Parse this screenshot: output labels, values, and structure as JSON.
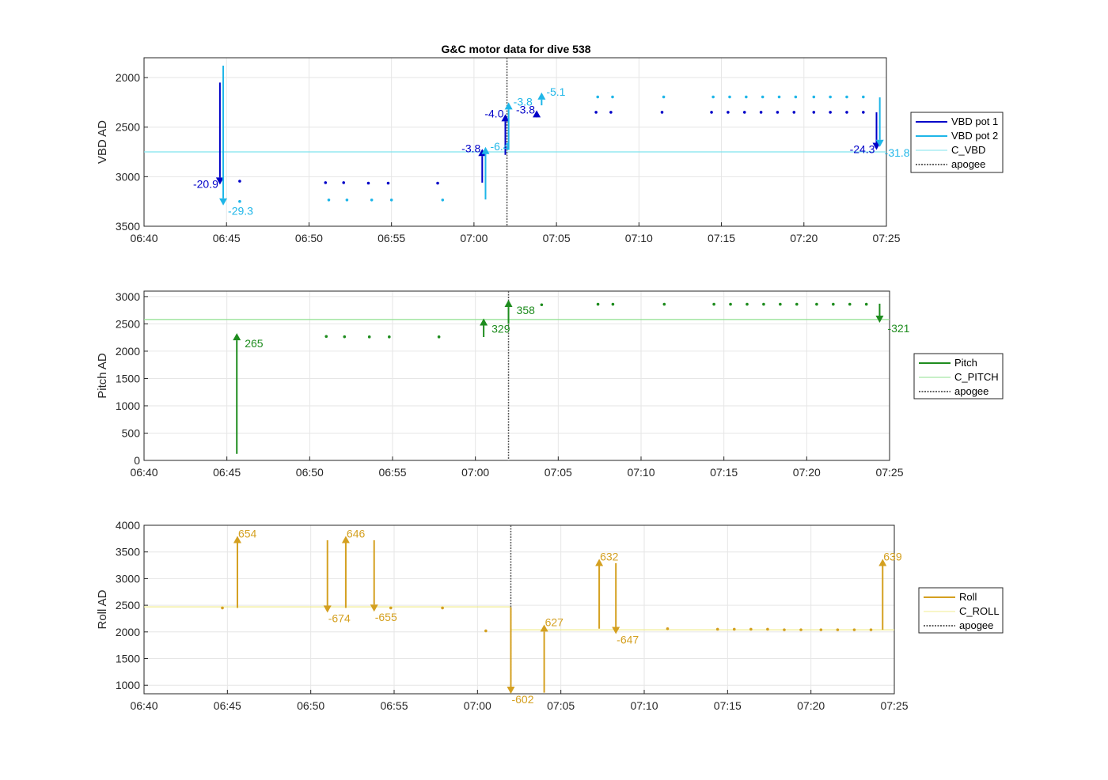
{
  "figure": {
    "title": "G&C motor data for dive 538"
  },
  "colors": {
    "vbd_pot1": "#0000c8",
    "vbd_pot2": "#1fb6e8",
    "c_vbd": "#7fe3ee",
    "pitch": "#1e8c1e",
    "c_pitch": "#8fe08f",
    "roll": "#d4a020",
    "c_roll": "#f0ec90",
    "apogee": "#555555",
    "grid": "#e6e6e6",
    "axis": "#262626"
  },
  "chart_data": [
    {
      "type": "scatter",
      "ylabel": "VBD AD",
      "y_reversed": true,
      "xlim": [
        "06:40",
        "07:25"
      ],
      "ylim": [
        1800,
        3500
      ],
      "xticks": [
        "06:40",
        "06:45",
        "06:50",
        "06:55",
        "07:00",
        "07:05",
        "07:10",
        "07:15",
        "07:20",
        "07:25"
      ],
      "yticks": [
        2000,
        2500,
        3000,
        3500
      ],
      "legend": [
        "VBD pot 1",
        "VBD pot 2",
        "C_VBD",
        "apogee"
      ],
      "legend_location": "outside-right",
      "grid": true,
      "apogee": "07:02",
      "reference_line": {
        "name": "C_VBD",
        "y": 2750
      },
      "series": [
        {
          "name": "VBD pot 1",
          "points": [
            [
              "06:45.8",
              3045
            ],
            [
              "06:51.0",
              3060
            ],
            [
              "06:52.1",
              3060
            ],
            [
              "06:53.6",
              3065
            ],
            [
              "06:54.8",
              3065
            ],
            [
              "06:57.8",
              3065
            ],
            [
              "07:07.4",
              2350
            ],
            [
              "07:08.3",
              2350
            ],
            [
              "07:11.4",
              2350
            ],
            [
              "07:14.4",
              2350
            ],
            [
              "07:15.4",
              2350
            ],
            [
              "07:16.4",
              2350
            ],
            [
              "07:17.4",
              2350
            ],
            [
              "07:18.4",
              2350
            ],
            [
              "07:19.4",
              2350
            ],
            [
              "07:20.6",
              2350
            ],
            [
              "07:21.6",
              2350
            ],
            [
              "07:22.6",
              2350
            ],
            [
              "07:23.6",
              2350
            ]
          ],
          "arrows": [
            {
              "x": "06:44.6",
              "y_from": 2050,
              "y_to": 3080,
              "label": "-20.9"
            },
            {
              "x": "07:00.5",
              "y_from": 3060,
              "y_to": 2720,
              "label": "-3.8"
            },
            {
              "x": "07:01.9",
              "y_from": 2780,
              "y_to": 2370,
              "label": "-4.0"
            },
            {
              "x": "07:03.8",
              "y_from": 2400,
              "y_to": 2330,
              "label": "-3.8"
            },
            {
              "x": "07:24.4",
              "y_from": 2350,
              "y_to": 2730,
              "label": "-24.3"
            }
          ]
        },
        {
          "name": "VBD pot 2",
          "points": [
            [
              "06:45.8",
              3250
            ],
            [
              "06:51.2",
              3235
            ],
            [
              "06:52.3",
              3235
            ],
            [
              "06:53.8",
              3235
            ],
            [
              "06:55.0",
              3235
            ],
            [
              "06:58.1",
              3235
            ],
            [
              "07:07.5",
              2195
            ],
            [
              "07:08.4",
              2195
            ],
            [
              "07:11.5",
              2195
            ],
            [
              "07:14.5",
              2195
            ],
            [
              "07:15.5",
              2195
            ],
            [
              "07:16.5",
              2195
            ],
            [
              "07:17.5",
              2195
            ],
            [
              "07:18.5",
              2195
            ],
            [
              "07:19.5",
              2195
            ],
            [
              "07:20.6",
              2195
            ],
            [
              "07:21.6",
              2195
            ],
            [
              "07:22.6",
              2195
            ],
            [
              "07:23.6",
              2195
            ]
          ],
          "arrows": [
            {
              "x": "06:44.8",
              "y_from": 1880,
              "y_to": 3290,
              "label": "-29.3"
            },
            {
              "x": "07:00.7",
              "y_from": 3230,
              "y_to": 2700,
              "label": "-6.4"
            },
            {
              "x": "07:02.1",
              "y_from": 2730,
              "y_to": 2250,
              "label": "-3.8"
            },
            {
              "x": "07:04.1",
              "y_from": 2280,
              "y_to": 2150,
              "label": "-5.1"
            },
            {
              "x": "07:24.6",
              "y_from": 2200,
              "y_to": 2700,
              "label": "-31.8"
            }
          ]
        }
      ]
    },
    {
      "type": "scatter",
      "ylabel": "Pitch AD",
      "xlim": [
        "06:40",
        "07:25"
      ],
      "ylim": [
        0,
        3100
      ],
      "xticks": [
        "06:40",
        "06:45",
        "06:50",
        "06:55",
        "07:00",
        "07:05",
        "07:10",
        "07:15",
        "07:20",
        "07:25"
      ],
      "yticks": [
        0,
        500,
        1000,
        1500,
        2000,
        2500,
        3000
      ],
      "legend": [
        "Pitch",
        "C_PITCH",
        "apogee"
      ],
      "legend_location": "outside-right",
      "grid": true,
      "apogee": "07:02",
      "reference_line": {
        "name": "C_PITCH",
        "y": 2580
      },
      "series": [
        {
          "name": "Pitch",
          "points": [
            [
              "06:51.0",
              2270
            ],
            [
              "06:52.1",
              2265
            ],
            [
              "06:53.6",
              2262
            ],
            [
              "06:54.8",
              2262
            ],
            [
              "06:57.8",
              2262
            ],
            [
              "07:04.0",
              2850
            ],
            [
              "07:07.4",
              2860
            ],
            [
              "07:08.3",
              2860
            ],
            [
              "07:11.4",
              2860
            ],
            [
              "07:14.4",
              2860
            ],
            [
              "07:15.4",
              2860
            ],
            [
              "07:16.4",
              2860
            ],
            [
              "07:17.4",
              2860
            ],
            [
              "07:18.4",
              2860
            ],
            [
              "07:19.4",
              2860
            ],
            [
              "07:20.6",
              2860
            ],
            [
              "07:21.6",
              2860
            ],
            [
              "07:22.6",
              2860
            ],
            [
              "07:23.6",
              2860
            ]
          ],
          "arrows": [
            {
              "x": "06:45.6",
              "y_from": 120,
              "y_to": 2330,
              "label": "265"
            },
            {
              "x": "07:00.5",
              "y_from": 2260,
              "y_to": 2600,
              "label": "329"
            },
            {
              "x": "07:02.0",
              "y_from": 2500,
              "y_to": 2940,
              "label": "358"
            },
            {
              "x": "07:24.4",
              "y_from": 2870,
              "y_to": 2520,
              "label": "-321"
            }
          ]
        }
      ]
    },
    {
      "type": "scatter",
      "ylabel": "Roll AD",
      "xlim": [
        "06:40",
        "07:25"
      ],
      "ylim": [
        840,
        4000
      ],
      "xticks": [
        "06:40",
        "06:45",
        "06:50",
        "06:55",
        "07:00",
        "07:05",
        "07:10",
        "07:15",
        "07:20",
        "07:25"
      ],
      "yticks": [
        1000,
        1500,
        2000,
        2500,
        3000,
        3500,
        4000
      ],
      "legend": [
        "Roll",
        "C_ROLL",
        "apogee"
      ],
      "legend_location": "outside-right",
      "grid": true,
      "apogee": "07:02",
      "reference_line": {
        "name": "C_ROLL",
        "segments": [
          [
            "06:40",
            "07:02",
            2470
          ],
          [
            "07:02",
            "07:25",
            2040
          ]
        ]
      },
      "series": [
        {
          "name": "Roll",
          "points": [
            [
              "06:44.7",
              2450
            ],
            [
              "06:54.8",
              2450
            ],
            [
              "06:57.9",
              2450
            ],
            [
              "07:00.5",
              2020
            ],
            [
              "07:11.4",
              2060
            ],
            [
              "07:14.4",
              2050
            ],
            [
              "07:15.4",
              2050
            ],
            [
              "07:16.4",
              2050
            ],
            [
              "07:17.4",
              2050
            ],
            [
              "07:18.4",
              2040
            ],
            [
              "07:19.4",
              2040
            ],
            [
              "07:20.6",
              2040
            ],
            [
              "07:21.6",
              2040
            ],
            [
              "07:22.6",
              2040
            ],
            [
              "07:23.6",
              2040
            ]
          ],
          "arrows": [
            {
              "x": "06:45.6",
              "y_from": 2450,
              "y_to": 3800,
              "label": "654"
            },
            {
              "x": "06:51.0",
              "y_from": 3720,
              "y_to": 2360,
              "label": "-674"
            },
            {
              "x": "06:52.1",
              "y_from": 2450,
              "y_to": 3800,
              "label": "646"
            },
            {
              "x": "06:53.8",
              "y_from": 3720,
              "y_to": 2380,
              "label": "-655"
            },
            {
              "x": "07:02.0",
              "y_from": 2460,
              "y_to": 840,
              "label": "-602"
            },
            {
              "x": "07:04.0",
              "y_from": 860,
              "y_to": 2140,
              "label": "627"
            },
            {
              "x": "07:07.3",
              "y_from": 2060,
              "y_to": 3370,
              "label": "632"
            },
            {
              "x": "07:08.3",
              "y_from": 3290,
              "y_to": 1960,
              "label": "-647"
            },
            {
              "x": "07:24.3",
              "y_from": 2040,
              "y_to": 3370,
              "label": "639"
            }
          ]
        }
      ]
    }
  ]
}
